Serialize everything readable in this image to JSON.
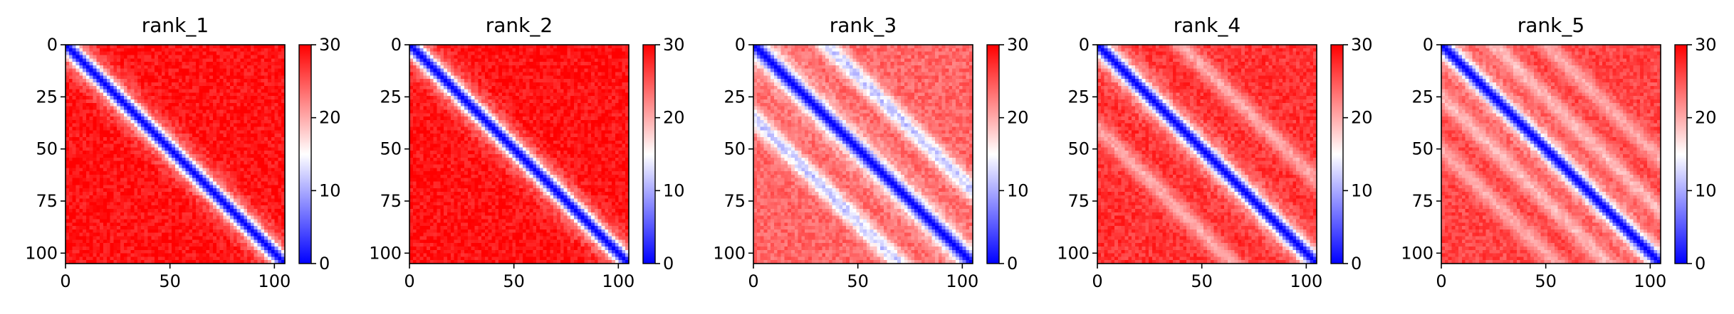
{
  "chart_data": [
    {
      "type": "heatmap",
      "title": "rank_1",
      "x_range": [
        0,
        105
      ],
      "y_range": [
        0,
        105
      ],
      "x_ticks": [
        0,
        50,
        100
      ],
      "y_ticks": [
        0,
        25,
        50,
        75,
        100
      ],
      "color_range": [
        0,
        30
      ],
      "colorbar_ticks": [
        0,
        10,
        20,
        30
      ],
      "colormap": "bwr",
      "diagonal_band_value": 0,
      "background_value": 29,
      "side_bands": []
    },
    {
      "type": "heatmap",
      "title": "rank_2",
      "x_range": [
        0,
        105
      ],
      "y_range": [
        0,
        105
      ],
      "x_ticks": [
        0,
        50,
        100
      ],
      "y_ticks": [
        0,
        25,
        50,
        75,
        100
      ],
      "color_range": [
        0,
        30
      ],
      "colorbar_ticks": [
        0,
        10,
        20,
        30
      ],
      "colormap": "bwr",
      "diagonal_band_value": 0,
      "background_value": 29,
      "side_bands": []
    },
    {
      "type": "heatmap",
      "title": "rank_3",
      "x_range": [
        0,
        105
      ],
      "y_range": [
        0,
        105
      ],
      "x_ticks": [
        0,
        50,
        100
      ],
      "y_ticks": [
        0,
        25,
        50,
        75,
        100
      ],
      "color_range": [
        0,
        30
      ],
      "colorbar_ticks": [
        0,
        10,
        20,
        30
      ],
      "colormap": "bwr",
      "diagonal_band_value": 0,
      "background_value": 24,
      "side_bands": [
        {
          "offset": 35,
          "value": 12
        },
        {
          "offset": -35,
          "value": 12
        }
      ]
    },
    {
      "type": "heatmap",
      "title": "rank_4",
      "x_range": [
        0,
        105
      ],
      "y_range": [
        0,
        105
      ],
      "x_ticks": [
        0,
        50,
        100
      ],
      "y_ticks": [
        0,
        25,
        50,
        75,
        100
      ],
      "color_range": [
        0,
        30
      ],
      "colorbar_ticks": [
        0,
        10,
        20,
        30
      ],
      "colormap": "bwr",
      "diagonal_band_value": 0,
      "background_value": 27,
      "side_bands": [
        {
          "offset": 40,
          "value": 20
        },
        {
          "offset": -40,
          "value": 20
        }
      ]
    },
    {
      "type": "heatmap",
      "title": "rank_5",
      "x_range": [
        0,
        105
      ],
      "y_range": [
        0,
        105
      ],
      "x_ticks": [
        0,
        50,
        100
      ],
      "y_ticks": [
        0,
        25,
        50,
        75,
        100
      ],
      "color_range": [
        0,
        30
      ],
      "colorbar_ticks": [
        0,
        10,
        20,
        30
      ],
      "colormap": "bwr",
      "diagonal_band_value": 0,
      "background_value": 26,
      "side_bands": [
        {
          "offset": 25,
          "value": 19
        },
        {
          "offset": -25,
          "value": 19
        },
        {
          "offset": 50,
          "value": 20
        },
        {
          "offset": -50,
          "value": 20
        }
      ]
    }
  ]
}
